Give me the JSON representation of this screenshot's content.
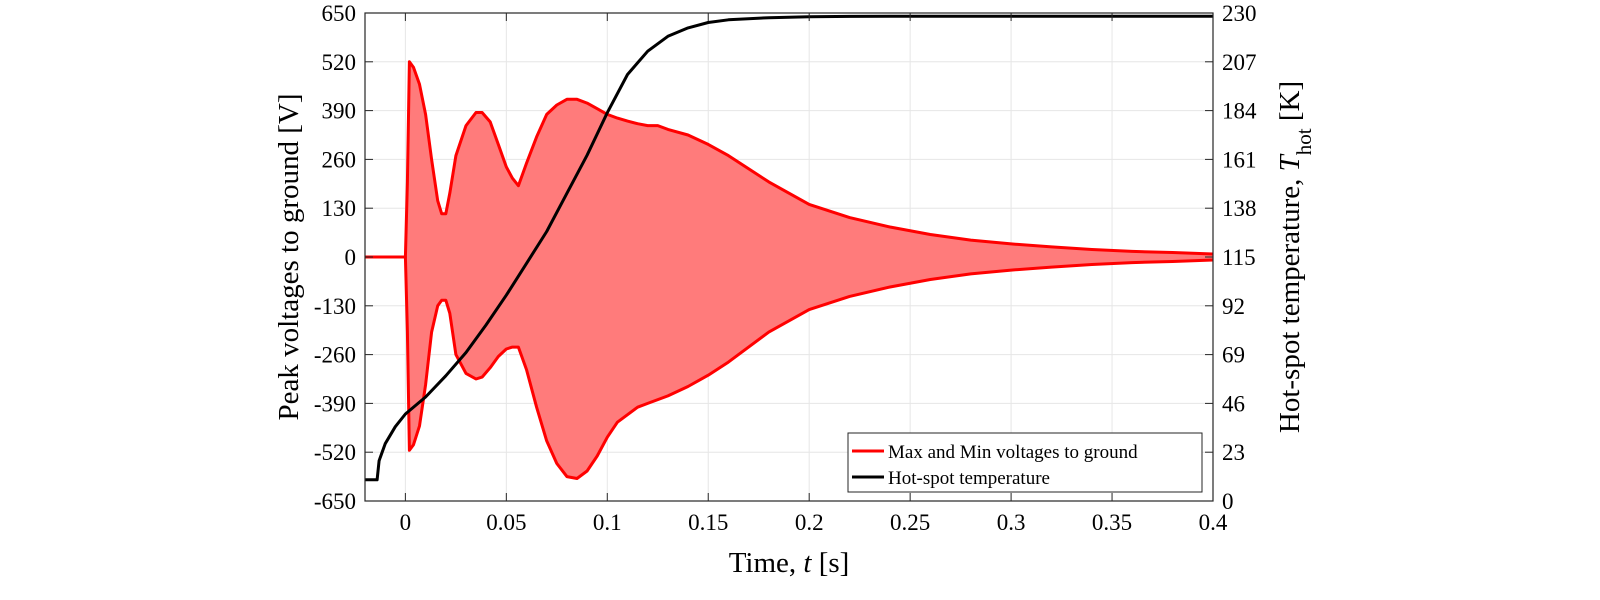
{
  "chart_data": {
    "type": "line",
    "xlabel": {
      "prefix": "Time, ",
      "var": "t",
      "suffix": " [s]"
    },
    "ylabel_left": "Peak voltages to ground [V]",
    "ylabel_right": {
      "prefix": "Hot-spot temperature, ",
      "var": "T",
      "sub": "hot",
      "suffix": " [K]"
    },
    "xlim": [
      -0.02,
      0.4
    ],
    "ylim_left": [
      -650,
      650
    ],
    "ylim_right": [
      0,
      230
    ],
    "x_ticks": [
      {
        "v": 0,
        "label": "0"
      },
      {
        "v": 0.05,
        "label": "0.05"
      },
      {
        "v": 0.1,
        "label": "0.1"
      },
      {
        "v": 0.15,
        "label": "0.15"
      },
      {
        "v": 0.2,
        "label": "0.2"
      },
      {
        "v": 0.25,
        "label": "0.25"
      },
      {
        "v": 0.3,
        "label": "0.3"
      },
      {
        "v": 0.35,
        "label": "0.35"
      },
      {
        "v": 0.4,
        "label": "0.4"
      }
    ],
    "y_ticks_left": [
      {
        "v": 650,
        "label": "650"
      },
      {
        "v": 520,
        "label": "520"
      },
      {
        "v": 390,
        "label": "390"
      },
      {
        "v": 260,
        "label": "260"
      },
      {
        "v": 130,
        "label": "130"
      },
      {
        "v": 0,
        "label": "0"
      },
      {
        "v": -130,
        "label": "-130"
      },
      {
        "v": -260,
        "label": "-260"
      },
      {
        "v": -390,
        "label": "-390"
      },
      {
        "v": -520,
        "label": "-520"
      },
      {
        "v": -650,
        "label": "-650"
      }
    ],
    "y_ticks_right": [
      {
        "v": 230,
        "label": "230"
      },
      {
        "v": 207,
        "label": "207"
      },
      {
        "v": 184,
        "label": "184"
      },
      {
        "v": 161,
        "label": "161"
      },
      {
        "v": 138,
        "label": "138"
      },
      {
        "v": 115,
        "label": "115"
      },
      {
        "v": 92,
        "label": "92"
      },
      {
        "v": 69,
        "label": "69"
      },
      {
        "v": 46,
        "label": "46"
      },
      {
        "v": 23,
        "label": "23"
      },
      {
        "v": 0,
        "label": "0"
      }
    ],
    "grid": true,
    "legend_position": "bottom-right",
    "series": [
      {
        "name": "Max and Min voltages to ground",
        "color": "#ff0000",
        "fill_color": "#ff7b7b",
        "axis": "left",
        "x": [
          -0.02,
          0.0,
          0.001,
          0.002,
          0.004,
          0.007,
          0.01,
          0.013,
          0.016,
          0.018,
          0.02,
          0.022,
          0.025,
          0.03,
          0.035,
          0.038,
          0.042,
          0.046,
          0.05,
          0.053,
          0.056,
          0.06,
          0.065,
          0.07,
          0.075,
          0.08,
          0.085,
          0.09,
          0.095,
          0.1,
          0.105,
          0.11,
          0.115,
          0.12,
          0.125,
          0.13,
          0.14,
          0.15,
          0.16,
          0.17,
          0.18,
          0.19,
          0.2,
          0.22,
          0.24,
          0.26,
          0.28,
          0.3,
          0.32,
          0.34,
          0.36,
          0.38,
          0.4
        ],
        "max": [
          0,
          0,
          200,
          520,
          505,
          460,
          380,
          260,
          150,
          115,
          115,
          170,
          270,
          350,
          385,
          385,
          360,
          300,
          240,
          210,
          190,
          250,
          320,
          380,
          405,
          420,
          420,
          410,
          395,
          380,
          370,
          362,
          355,
          350,
          350,
          340,
          325,
          300,
          270,
          235,
          200,
          170,
          140,
          105,
          80,
          60,
          45,
          35,
          27,
          20,
          15,
          12,
          8
        ],
        "min": [
          0,
          0,
          -200,
          -515,
          -500,
          -450,
          -340,
          -200,
          -130,
          -115,
          -115,
          -150,
          -260,
          -310,
          -325,
          -320,
          -295,
          -265,
          -245,
          -240,
          -240,
          -300,
          -400,
          -490,
          -550,
          -585,
          -590,
          -570,
          -530,
          -480,
          -440,
          -420,
          -400,
          -390,
          -380,
          -370,
          -345,
          -315,
          -280,
          -240,
          -200,
          -170,
          -140,
          -105,
          -80,
          -60,
          -45,
          -35,
          -27,
          -20,
          -15,
          -12,
          -8
        ]
      },
      {
        "name": "Hot-spot temperature",
        "color": "#000000",
        "axis": "right",
        "x": [
          -0.02,
          -0.014,
          -0.013,
          -0.01,
          -0.005,
          0.0,
          0.005,
          0.01,
          0.02,
          0.03,
          0.04,
          0.05,
          0.06,
          0.07,
          0.08,
          0.09,
          0.1,
          0.11,
          0.12,
          0.13,
          0.14,
          0.15,
          0.16,
          0.18,
          0.2,
          0.22,
          0.25,
          0.3,
          0.35,
          0.4
        ],
        "temp": [
          10,
          10,
          19,
          27,
          35,
          41,
          45,
          49,
          59,
          70,
          83,
          97,
          112,
          127,
          145,
          163,
          183,
          201,
          212,
          219,
          223,
          225.5,
          226.8,
          227.8,
          228.2,
          228.4,
          228.5,
          228.5,
          228.5,
          228.5
        ]
      }
    ]
  }
}
